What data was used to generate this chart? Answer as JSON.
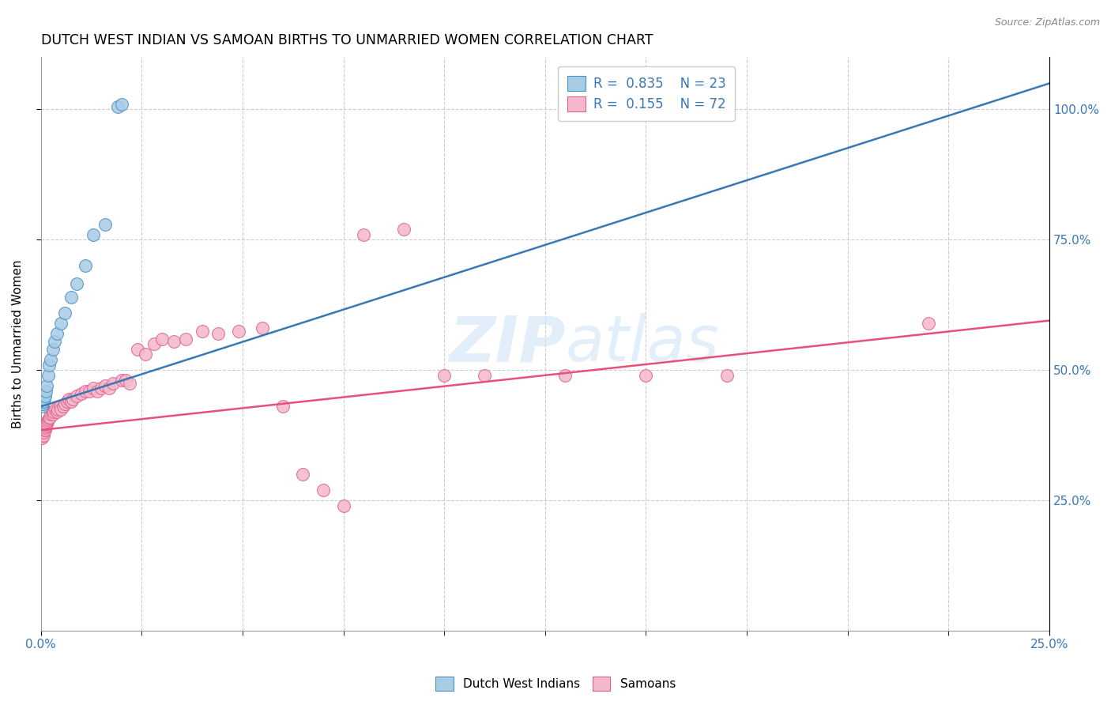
{
  "title": "DUTCH WEST INDIAN VS SAMOAN BIRTHS TO UNMARRIED WOMEN CORRELATION CHART",
  "source": "Source: ZipAtlas.com",
  "ylabel": "Births to Unmarried Women",
  "watermark": "ZIPatlas",
  "blue_color": "#a8cce4",
  "pink_color": "#f4b8ca",
  "blue_edge_color": "#4a90c4",
  "pink_edge_color": "#e06090",
  "blue_line_color": "#3a78b5",
  "pink_line_color": "#e8507a",
  "right_tick_color": "#3a78b5",
  "blue_dots_x": [
    0.0003,
    0.0004,
    0.0005,
    0.0006,
    0.0008,
    0.001,
    0.0012,
    0.0015,
    0.0018,
    0.002,
    0.0025,
    0.003,
    0.0035,
    0.004,
    0.005,
    0.006,
    0.0075,
    0.009,
    0.011,
    0.013,
    0.016,
    0.019,
    0.02
  ],
  "blue_dots_y": [
    0.43,
    0.435,
    0.44,
    0.44,
    0.445,
    0.45,
    0.46,
    0.47,
    0.49,
    0.51,
    0.52,
    0.54,
    0.555,
    0.57,
    0.59,
    0.61,
    0.64,
    0.665,
    0.7,
    0.76,
    0.78,
    1.005,
    1.01
  ],
  "pink_dots_x": [
    0.0001,
    0.0002,
    0.0003,
    0.0003,
    0.0004,
    0.0005,
    0.0005,
    0.0006,
    0.0007,
    0.0008,
    0.0008,
    0.0009,
    0.001,
    0.0011,
    0.0012,
    0.0013,
    0.0014,
    0.0015,
    0.0016,
    0.0018,
    0.002,
    0.0022,
    0.0025,
    0.0028,
    0.003,
    0.0033,
    0.0036,
    0.004,
    0.0043,
    0.0047,
    0.005,
    0.0055,
    0.006,
    0.0065,
    0.007,
    0.0075,
    0.008,
    0.009,
    0.01,
    0.011,
    0.012,
    0.013,
    0.014,
    0.015,
    0.016,
    0.017,
    0.018,
    0.02,
    0.021,
    0.022,
    0.024,
    0.026,
    0.028,
    0.03,
    0.033,
    0.036,
    0.04,
    0.044,
    0.049,
    0.055,
    0.06,
    0.065,
    0.07,
    0.075,
    0.08,
    0.09,
    0.1,
    0.11,
    0.13,
    0.15,
    0.17,
    0.22
  ],
  "pink_dots_y": [
    0.37,
    0.375,
    0.37,
    0.38,
    0.375,
    0.38,
    0.385,
    0.375,
    0.38,
    0.385,
    0.388,
    0.39,
    0.385,
    0.39,
    0.392,
    0.395,
    0.4,
    0.398,
    0.402,
    0.405,
    0.408,
    0.41,
    0.415,
    0.42,
    0.415,
    0.42,
    0.425,
    0.42,
    0.425,
    0.43,
    0.425,
    0.43,
    0.435,
    0.44,
    0.445,
    0.44,
    0.445,
    0.45,
    0.455,
    0.46,
    0.46,
    0.465,
    0.46,
    0.465,
    0.47,
    0.465,
    0.475,
    0.48,
    0.48,
    0.475,
    0.54,
    0.53,
    0.55,
    0.56,
    0.555,
    0.56,
    0.575,
    0.57,
    0.575,
    0.58,
    0.43,
    0.3,
    0.27,
    0.24,
    0.76,
    0.77,
    0.49,
    0.49,
    0.49,
    0.49,
    0.49,
    0.59
  ],
  "xmin": 0.0,
  "xmax": 0.25,
  "ymin": 0.0,
  "ymax": 1.1,
  "blue_line_x0": 0.0,
  "blue_line_y0": 0.43,
  "blue_line_x1": 0.25,
  "blue_line_y1": 1.05,
  "pink_line_x0": 0.0,
  "pink_line_y0": 0.385,
  "pink_line_x1": 0.25,
  "pink_line_y1": 0.595
}
